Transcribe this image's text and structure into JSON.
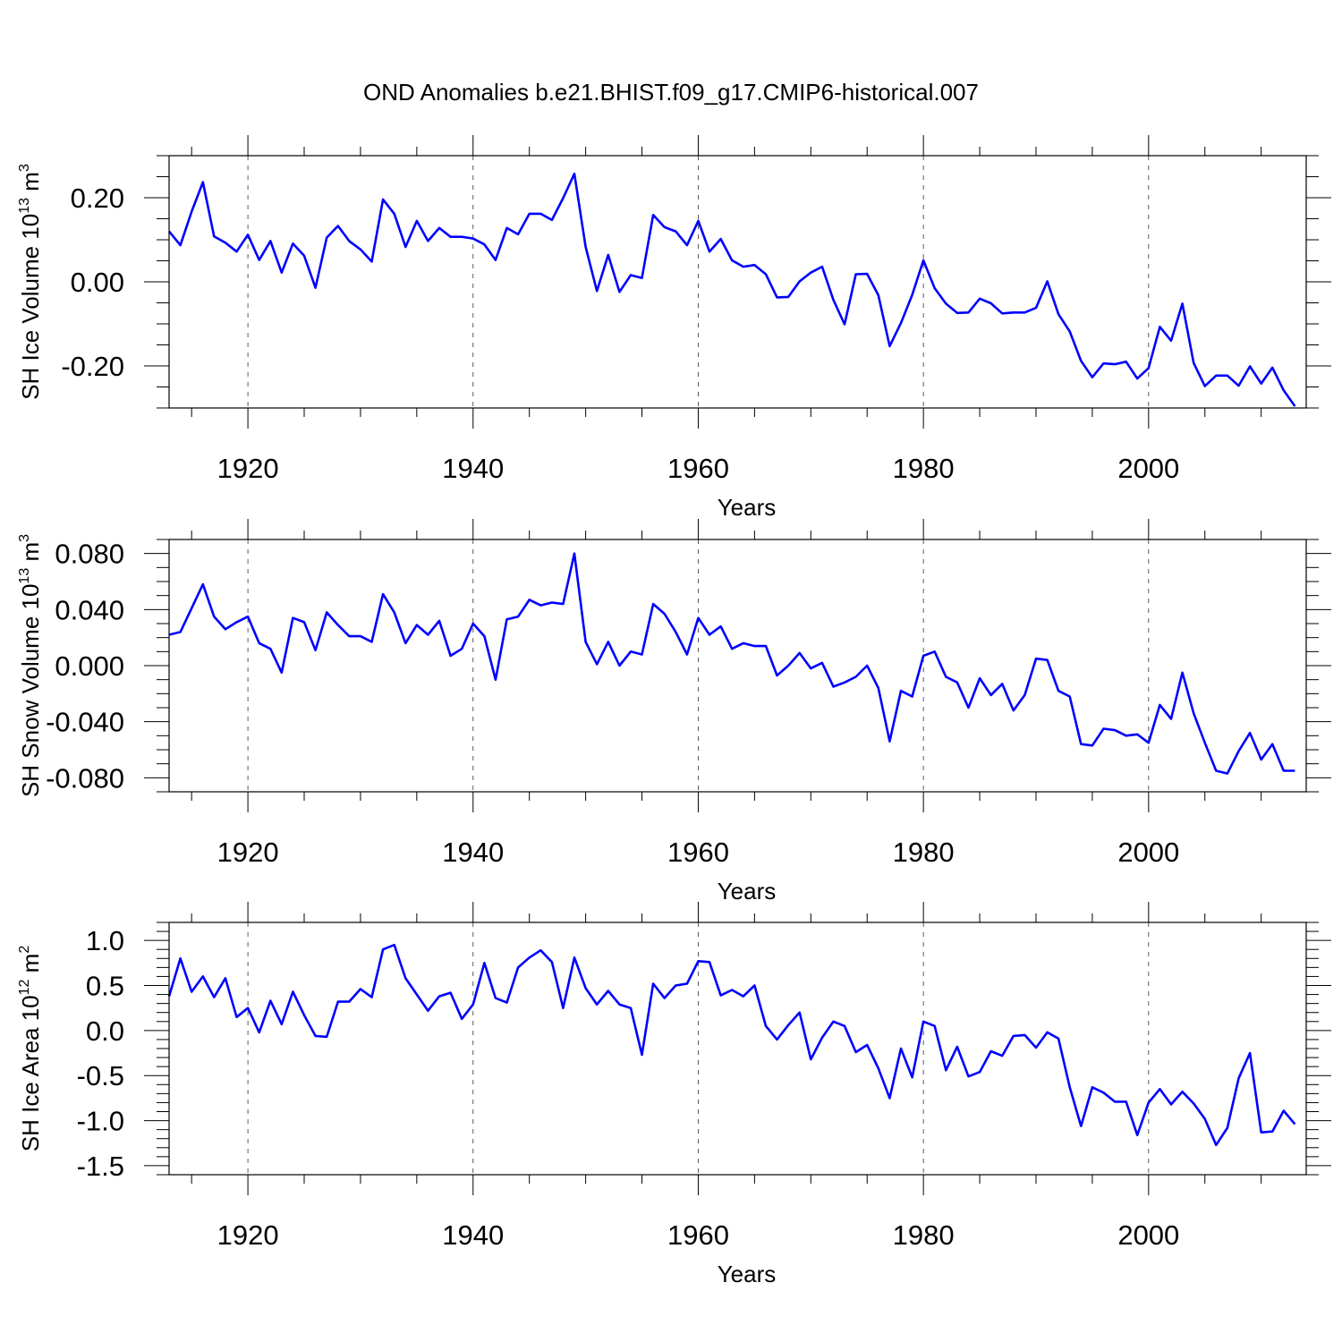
{
  "figure_title": "OND Anomalies b.e21.BHIST.f09_g17.CMIP6-historical.007",
  "colors": {
    "series": "#0000ff",
    "axis": "#000000",
    "grid": "#000000",
    "background": "#ffffff"
  },
  "chart_data": [
    {
      "type": "line",
      "id": "ice-volume",
      "ylabel": "SH Ice Volume 10",
      "ylabel_exponent": "13",
      "ylabel_unit": " m",
      "ylabel_unit_exponent": "3",
      "xlabel": "Years",
      "xlim": [
        1913,
        2014
      ],
      "ylim": [
        -0.3,
        0.3
      ],
      "xticks": [
        1920,
        1940,
        1960,
        1980,
        2000
      ],
      "xtick_labels": [
        "1920",
        "1940",
        "1960",
        "1980",
        "2000"
      ],
      "yticks": [
        0.2,
        0.0,
        -0.2
      ],
      "ytick_labels": [
        "0.20",
        "0.00",
        "-0.20"
      ],
      "minor_step": 0.05,
      "vertical_grid": "dashed",
      "x_start": 1913,
      "values": [
        0.12,
        0.087,
        0.167,
        0.237,
        0.108,
        0.093,
        0.072,
        0.112,
        0.052,
        0.097,
        0.022,
        0.091,
        0.062,
        -0.014,
        0.105,
        0.133,
        0.097,
        0.077,
        0.048,
        0.196,
        0.162,
        0.083,
        0.145,
        0.097,
        0.128,
        0.107,
        0.107,
        0.103,
        0.089,
        0.052,
        0.128,
        0.113,
        0.162,
        0.162,
        0.147,
        0.199,
        0.257,
        0.083,
        -0.022,
        0.064,
        -0.024,
        0.016,
        0.009,
        0.159,
        0.13,
        0.12,
        0.087,
        0.145,
        0.072,
        0.102,
        0.051,
        0.036,
        0.04,
        0.018,
        -0.037,
        -0.036,
        0.001,
        0.022,
        0.036,
        -0.043,
        -0.101,
        0.018,
        0.019,
        -0.032,
        -0.153,
        -0.098,
        -0.031,
        0.051,
        -0.015,
        -0.052,
        -0.074,
        -0.073,
        -0.04,
        -0.051,
        -0.075,
        -0.073,
        -0.073,
        -0.062,
        0.001,
        -0.077,
        -0.118,
        -0.188,
        -0.227,
        -0.194,
        -0.196,
        -0.19,
        -0.23,
        -0.205,
        -0.107,
        -0.14,
        -0.052,
        -0.193,
        -0.248,
        -0.223,
        -0.223,
        -0.247,
        -0.201,
        -0.242,
        -0.204,
        -0.258,
        -0.296
      ]
    },
    {
      "type": "line",
      "id": "snow-volume",
      "ylabel": "SH Snow Volume 10",
      "ylabel_exponent": "13",
      "ylabel_unit": " m",
      "ylabel_unit_exponent": "3",
      "xlabel": "Years",
      "xlim": [
        1913,
        2014
      ],
      "ylim": [
        -0.09,
        0.09
      ],
      "xticks": [
        1920,
        1940,
        1960,
        1980,
        2000
      ],
      "xtick_labels": [
        "1920",
        "1940",
        "1960",
        "1980",
        "2000"
      ],
      "yticks": [
        0.08,
        0.04,
        0.0,
        -0.04,
        -0.08
      ],
      "ytick_labels": [
        "0.080",
        "0.040",
        "0.000",
        "-0.040",
        "-0.080"
      ],
      "minor_step": 0.01,
      "vertical_grid": "dashed",
      "x_start": 1913,
      "values": [
        0.022,
        0.024,
        0.041,
        0.058,
        0.035,
        0.026,
        0.031,
        0.035,
        0.016,
        0.012,
        -0.005,
        0.034,
        0.031,
        0.011,
        0.038,
        0.029,
        0.021,
        0.021,
        0.017,
        0.051,
        0.038,
        0.016,
        0.029,
        0.022,
        0.032,
        0.007,
        0.012,
        0.03,
        0.021,
        -0.01,
        0.033,
        0.035,
        0.047,
        0.043,
        0.045,
        0.044,
        0.08,
        0.017,
        0.001,
        0.017,
        0.0,
        0.01,
        0.008,
        0.044,
        0.037,
        0.024,
        0.008,
        0.034,
        0.022,
        0.028,
        0.012,
        0.016,
        0.014,
        0.014,
        -0.007,
        0.0,
        0.009,
        -0.002,
        0.002,
        -0.015,
        -0.012,
        -0.008,
        0.0,
        -0.016,
        -0.054,
        -0.018,
        -0.022,
        0.007,
        0.01,
        -0.008,
        -0.012,
        -0.03,
        -0.009,
        -0.021,
        -0.013,
        -0.032,
        -0.021,
        0.005,
        0.004,
        -0.018,
        -0.022,
        -0.056,
        -0.057,
        -0.045,
        -0.046,
        -0.05,
        -0.049,
        -0.055,
        -0.028,
        -0.038,
        -0.005,
        -0.034,
        -0.055,
        -0.075,
        -0.077,
        -0.061,
        -0.048,
        -0.067,
        -0.056,
        -0.075,
        -0.075
      ]
    },
    {
      "type": "line",
      "id": "ice-area",
      "ylabel": "SH Ice Area 10",
      "ylabel_exponent": "12",
      "ylabel_unit": " m",
      "ylabel_unit_exponent": "2",
      "xlabel": "Years",
      "xlim": [
        1913,
        2014
      ],
      "ylim": [
        -1.6,
        1.2
      ],
      "xticks": [
        1920,
        1940,
        1960,
        1980,
        2000
      ],
      "xtick_labels": [
        "1920",
        "1940",
        "1960",
        "1980",
        "2000"
      ],
      "yticks": [
        1.0,
        0.5,
        0.0,
        -0.5,
        -1.0,
        -1.5
      ],
      "ytick_labels": [
        "1.0",
        "0.5",
        "0.0",
        "-0.5",
        "-1.0",
        "-1.5"
      ],
      "minor_step": 0.1,
      "vertical_grid": "dashed",
      "x_start": 1913,
      "values": [
        0.38,
        0.8,
        0.43,
        0.6,
        0.37,
        0.58,
        0.15,
        0.25,
        -0.02,
        0.33,
        0.07,
        0.43,
        0.17,
        -0.06,
        -0.07,
        0.32,
        0.32,
        0.46,
        0.37,
        0.9,
        0.95,
        0.58,
        0.4,
        0.22,
        0.38,
        0.42,
        0.13,
        0.29,
        0.75,
        0.36,
        0.31,
        0.7,
        0.81,
        0.89,
        0.76,
        0.25,
        0.81,
        0.47,
        0.29,
        0.44,
        0.29,
        0.25,
        -0.27,
        0.52,
        0.36,
        0.5,
        0.52,
        0.77,
        0.76,
        0.39,
        0.45,
        0.38,
        0.5,
        0.05,
        -0.1,
        0.06,
        0.2,
        -0.32,
        -0.08,
        0.1,
        0.05,
        -0.24,
        -0.16,
        -0.42,
        -0.75,
        -0.2,
        -0.52,
        0.1,
        0.05,
        -0.44,
        -0.18,
        -0.51,
        -0.46,
        -0.23,
        -0.28,
        -0.06,
        -0.05,
        -0.19,
        -0.02,
        -0.09,
        -0.63,
        -1.06,
        -0.63,
        -0.69,
        -0.79,
        -0.79,
        -1.16,
        -0.8,
        -0.65,
        -0.82,
        -0.68,
        -0.81,
        -0.98,
        -1.27,
        -1.08,
        -0.53,
        -0.25,
        -1.13,
        -1.12,
        -0.89,
        -1.04
      ]
    }
  ]
}
